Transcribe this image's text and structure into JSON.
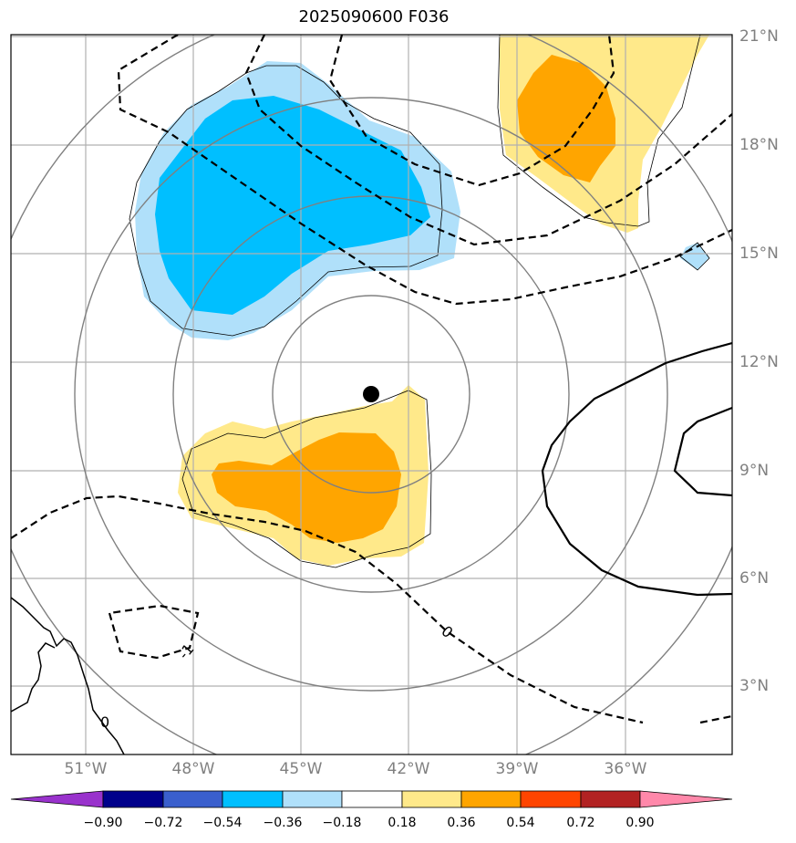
{
  "title": "2025090600 F036",
  "lat_labels": [
    "21°N",
    "18°N",
    "15°N",
    "12°N",
    "9°N",
    "6°N",
    "3°N"
  ],
  "lon_labels": [
    "51°W",
    "48°W",
    "45°W",
    "42°W",
    "39°W",
    "36°W"
  ],
  "contour_labels": [
    "0",
    "-1",
    "0"
  ],
  "colorbar": {
    "ticks": [
      "−0.90",
      "−0.72",
      "−0.54",
      "−0.36",
      "−0.18",
      "0.18",
      "0.36",
      "0.54",
      "0.72",
      "0.90"
    ],
    "colors": [
      "#9932cc",
      "#00008b",
      "#3a5fcd",
      "#00bfff",
      "#b0e0fa",
      "#ffffff",
      "#ffe98a",
      "#ffa500",
      "#ff4500",
      "#b22222",
      "#ff88aa"
    ]
  },
  "colors": {
    "light_blue": "#b0e0fa",
    "blue": "#00bfff",
    "light_yellow": "#ffe98a",
    "orange": "#ffa500",
    "grid": "#b0b0b0",
    "circles": "#808080"
  }
}
